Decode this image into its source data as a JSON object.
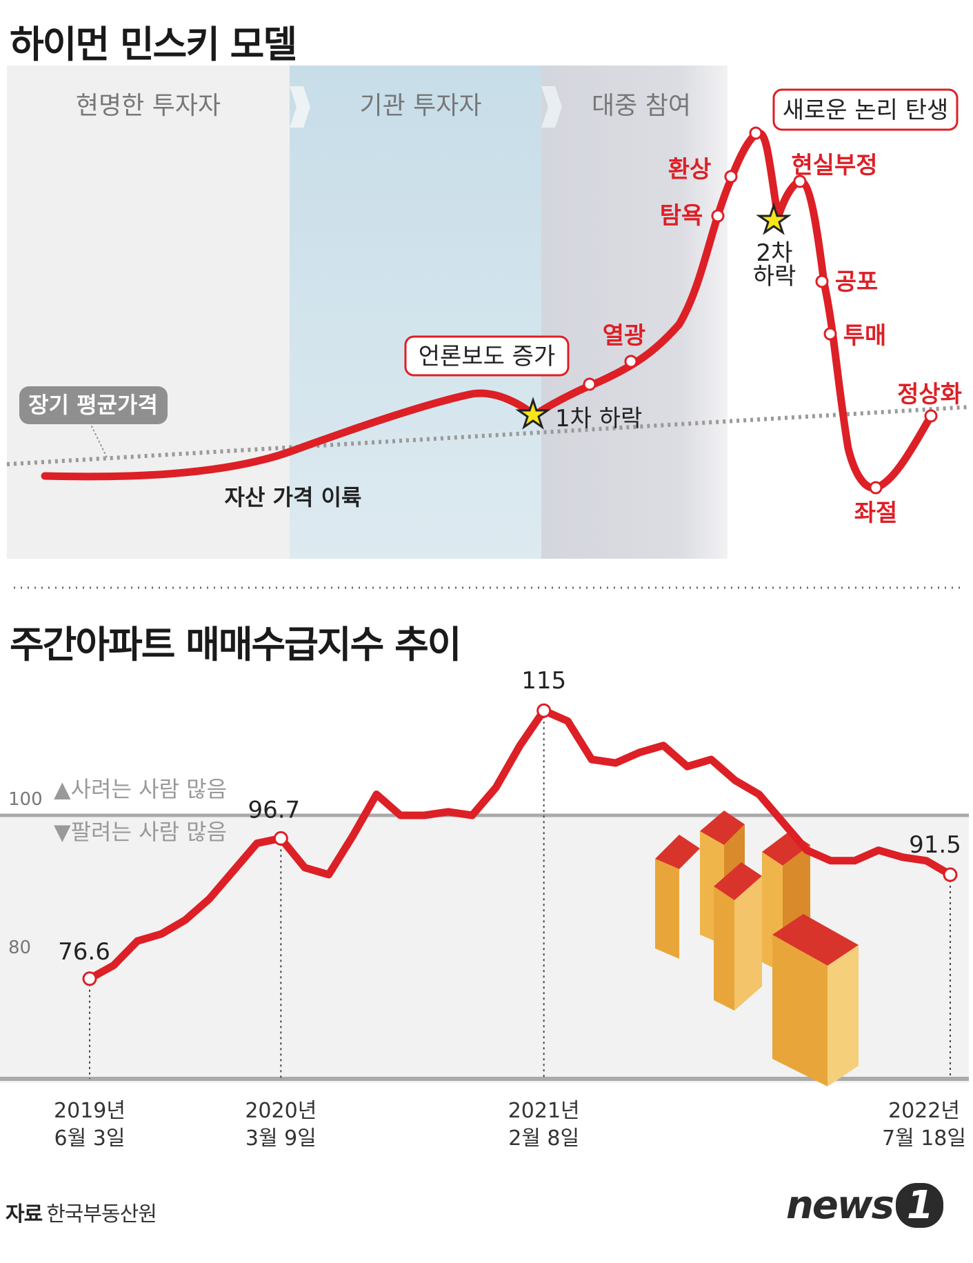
{
  "hyman_minsky": {
    "title": "하이먼 민스키 모델",
    "phases": [
      "현명한 투자자",
      "기관 투자자",
      "대중 참여"
    ],
    "long_term_avg": "장기 평균가격",
    "decoupling": "자산 가격 이륙",
    "media": "언론보도 증가",
    "new_paradigm": "새로운 논리 탄생",
    "first_drop": "1차 하락",
    "second_drop_1": "2차",
    "second_drop_2": "하락",
    "stages": {
      "enthusiasm": "열광",
      "greed": "탐욕",
      "delusion": "환상",
      "denial": "현실부정",
      "fear": "공포",
      "capitulation": "투매",
      "despair": "좌절",
      "normalization": "정상화"
    }
  },
  "weekly_index": {
    "title": "주간아파트 매매수급지수 추이",
    "buyers_label": "▲사려는 사람 많음",
    "sellers_label": "▼팔려는 사람 많음",
    "y_tick_100": "100",
    "y_tick_80": "80",
    "dates": [
      {
        "year": "2019년",
        "day": "6월 3일"
      },
      {
        "year": "2020년",
        "day": "3월 9일"
      },
      {
        "year": "2021년",
        "day": "2월 8일"
      },
      {
        "year": "2022년",
        "day": "7월 18일"
      }
    ],
    "value_labels": [
      "76.6",
      "96.7",
      "115",
      "91.5"
    ]
  },
  "chart_data": [
    {
      "type": "line",
      "title": "하이먼 민스키 모델",
      "x": [
        0,
        5,
        10,
        15,
        20,
        25,
        30,
        35,
        40,
        45,
        50,
        55,
        58,
        62,
        65,
        68,
        70,
        72,
        74,
        76,
        78,
        80,
        82,
        84,
        86,
        88,
        90,
        92,
        94,
        96,
        100
      ],
      "y": [
        10,
        10,
        11,
        14,
        20,
        27,
        32,
        36,
        35,
        31,
        36,
        43,
        47,
        53,
        63,
        79,
        88,
        95,
        89,
        80,
        87,
        89,
        79,
        65,
        50,
        30,
        18,
        16,
        18,
        22,
        28
      ],
      "series": [
        {
          "name": "가격",
          "color": "#dd1f26"
        }
      ],
      "annotations": [
        "장기 평균가격",
        "자산 가격 이륙",
        "언론보도 증가",
        "1차 하락",
        "열광",
        "탐욕",
        "환상",
        "새로운 논리 탄생",
        "2차 하락",
        "현실부정",
        "공포",
        "투매",
        "좌절",
        "정상화"
      ]
    },
    {
      "type": "line",
      "title": "주간아파트 매매수급지수 추이",
      "x": [
        "2019년 6월 3일",
        "2019년 7월",
        "2019년 9월",
        "2019년 10월",
        "2019년 11월",
        "2019년 12월",
        "2020년 1월",
        "2020년 2월",
        "2020년 3월 9일",
        "2020년 4월",
        "2020년 5월",
        "2020년 6월",
        "2020년 7월",
        "2020년 8월",
        "2020년 9월",
        "2020년 10월",
        "2020년 11월",
        "2020년 12월",
        "2021년 1월",
        "2021년 2월 8일",
        "2021년 3월",
        "2021년 4월",
        "2021년 5월",
        "2021년 6월",
        "2021년 7월",
        "2021년 8월",
        "2021년 9월",
        "2021년 10월",
        "2021년 11월",
        "2021년 12월",
        "2022년 1월",
        "2022년 2월",
        "2022년 3월",
        "2022년 4월",
        "2022년 5월",
        "2022년 6월",
        "2022년 7월 18일"
      ],
      "y": [
        76.6,
        78.5,
        82,
        83,
        85,
        88,
        92,
        96,
        96.7,
        92.5,
        91.5,
        97,
        103,
        100,
        100,
        100.5,
        100,
        104,
        110,
        115,
        113.5,
        108,
        107.5,
        109,
        110,
        107,
        108,
        105,
        103,
        99,
        95,
        93.5,
        93.5,
        95,
        94,
        93.5,
        91.5
      ],
      "ylim": [
        70,
        120
      ],
      "reference_line": 100,
      "y_ticks": [
        100,
        80
      ],
      "series": [
        {
          "name": "매매수급지수",
          "color": "#dd1f26"
        }
      ],
      "highlighted": [
        {
          "x": "2019년 6월 3일",
          "y": 76.6
        },
        {
          "x": "2020년 3월 9일",
          "y": 96.7
        },
        {
          "x": "2021년 2월 8일",
          "y": 115
        },
        {
          "x": "2022년 7월 18일",
          "y": 91.5
        }
      ],
      "source": "자료 한국부동산원"
    }
  ],
  "source_label": "자료",
  "source_name": "한국부동산원",
  "logo": "news",
  "logo_num": "1"
}
